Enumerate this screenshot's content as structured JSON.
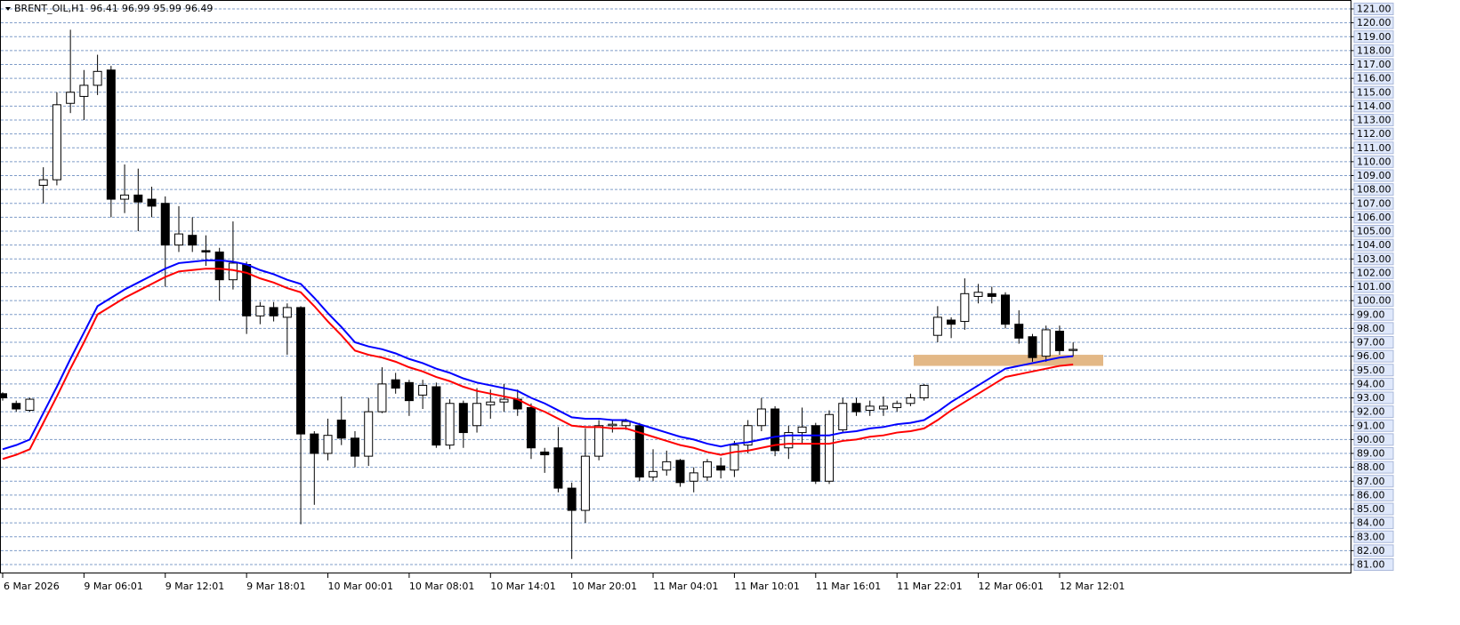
{
  "chart_data": {
    "type": "candlestick",
    "title": "BRENT_OIL,H1",
    "header_values": [
      "96.41",
      "96.99",
      "95.99",
      "96.49"
    ],
    "x": [
      "6 Mar 2026",
      null,
      null,
      null,
      null,
      null,
      "9 Mar 06:01",
      null,
      null,
      null,
      null,
      null,
      "9 Mar 12:01",
      null,
      null,
      null,
      null,
      null,
      "9 Mar 18:01",
      null,
      null,
      null,
      null,
      null,
      "10 Mar 00:01",
      null,
      null,
      null,
      null,
      null,
      "10 Mar 08:01",
      null,
      null,
      null,
      null,
      null,
      "10 Mar 14:01",
      null,
      null,
      null,
      null,
      null,
      "10 Mar 20:01",
      null,
      null,
      null,
      null,
      null,
      "11 Mar 04:01",
      null,
      null,
      null,
      null,
      null,
      "11 Mar 10:01",
      null,
      null,
      null,
      null,
      null,
      "11 Mar 16:01",
      null,
      null,
      null,
      null,
      null,
      "11 Mar 22:01",
      null,
      null,
      null,
      null,
      null,
      "12 Mar 06:01",
      null,
      null,
      null,
      null,
      null,
      "12 Mar 12:01",
      null
    ],
    "open": [
      93.3,
      92.6,
      92.1,
      108.3,
      108.7,
      114.2,
      114.7,
      115.5,
      116.6,
      107.3,
      107.6,
      107.3,
      107.0,
      104.0,
      104.7,
      103.6,
      103.5,
      101.5,
      102.6,
      98.9,
      99.5,
      98.8,
      99.5,
      90.4,
      89.0,
      91.4,
      90.1,
      88.8,
      92.0,
      94.3,
      94.1,
      93.2,
      93.8,
      89.6,
      92.6,
      91.0,
      92.5,
      92.7,
      92.9,
      92.3,
      89.1,
      89.4,
      86.5,
      84.9,
      88.8,
      91.0,
      91.0,
      91.0,
      87.3,
      87.8,
      88.5,
      87.0,
      87.3,
      88.1,
      87.8,
      89.6,
      91.0,
      92.2,
      89.4,
      90.5,
      91.0,
      87.0,
      90.7,
      92.6,
      92.1,
      92.2,
      92.3,
      92.6,
      93.0,
      97.5,
      98.6,
      98.5,
      100.3,
      100.5,
      100.4,
      98.3,
      97.4,
      96.0,
      97.8,
      96.41
    ],
    "high": [
      93.4,
      92.8,
      93.0,
      109.6,
      115.0,
      119.5,
      116.6,
      117.7,
      116.9,
      109.8,
      109.5,
      108.2,
      107.5,
      106.8,
      106.0,
      104.7,
      103.8,
      105.7,
      102.8,
      99.9,
      99.9,
      99.8,
      99.6,
      90.6,
      91.5,
      93.1,
      90.6,
      93.0,
      95.2,
      94.8,
      94.3,
      94.3,
      94.1,
      92.9,
      92.8,
      93.7,
      93.6,
      94.0,
      93.6,
      92.6,
      89.4,
      90.9,
      86.9,
      90.8,
      91.4,
      91.4,
      91.5,
      91.2,
      89.3,
      89.2,
      88.6,
      88.0,
      88.6,
      88.7,
      89.9,
      91.4,
      93.0,
      92.4,
      91.0,
      92.3,
      91.2,
      92.1,
      93.0,
      93.0,
      92.8,
      93.1,
      92.8,
      93.3,
      94.0,
      99.6,
      98.8,
      101.6,
      101.2,
      101.0,
      100.6,
      99.3,
      97.6,
      98.2,
      98.2,
      96.99
    ],
    "low": [
      92.8,
      92.0,
      92.0,
      107.0,
      108.3,
      113.5,
      113.0,
      114.8,
      106.0,
      106.3,
      105.0,
      106.0,
      101.0,
      103.5,
      103.5,
      102.5,
      100.0,
      100.8,
      97.6,
      98.3,
      98.5,
      96.1,
      83.9,
      85.3,
      88.5,
      89.6,
      88.0,
      88.1,
      91.9,
      93.3,
      91.7,
      92.2,
      89.4,
      89.3,
      89.4,
      90.5,
      91.5,
      92.0,
      91.7,
      88.6,
      87.6,
      86.2,
      81.4,
      84.0,
      88.5,
      90.5,
      90.7,
      87.0,
      87.0,
      87.4,
      86.6,
      86.2,
      87.0,
      87.2,
      87.3,
      89.0,
      90.6,
      88.8,
      88.6,
      89.7,
      86.8,
      86.8,
      90.5,
      91.7,
      91.7,
      91.7,
      92.0,
      92.4,
      92.8,
      97.0,
      97.3,
      97.9,
      99.8,
      99.8,
      98.0,
      96.9,
      95.6,
      95.6,
      96.1,
      95.99
    ],
    "close": [
      93.0,
      92.2,
      92.9,
      108.7,
      114.1,
      115.0,
      115.5,
      116.5,
      107.3,
      107.6,
      107.1,
      106.8,
      104.0,
      104.8,
      104.0,
      103.5,
      101.5,
      102.7,
      98.9,
      99.6,
      98.9,
      99.5,
      90.4,
      89.0,
      90.3,
      90.1,
      88.8,
      92.0,
      94.0,
      93.7,
      92.8,
      93.9,
      89.6,
      92.6,
      90.5,
      92.6,
      92.7,
      92.9,
      92.2,
      89.4,
      88.9,
      86.5,
      84.9,
      88.8,
      91.0,
      91.1,
      91.3,
      87.3,
      87.7,
      88.4,
      86.9,
      87.6,
      88.4,
      87.8,
      89.6,
      91.0,
      92.2,
      89.2,
      90.5,
      90.9,
      87.0,
      91.8,
      92.6,
      92.0,
      92.4,
      92.4,
      92.6,
      93.0,
      93.9,
      98.8,
      98.3,
      100.5,
      100.6,
      100.3,
      98.3,
      97.3,
      95.9,
      97.9,
      96.4,
      96.49
    ],
    "overlays": [
      {
        "color": "#0000ff",
        "values": [
          89.3,
          89.6,
          90.0,
          91.9,
          93.8,
          95.8,
          97.7,
          99.6,
          100.2,
          100.8,
          101.3,
          101.8,
          102.3,
          102.7,
          102.8,
          102.9,
          102.9,
          102.8,
          102.6,
          102.2,
          101.9,
          101.5,
          101.2,
          100.2,
          99.1,
          98.1,
          97.0,
          96.7,
          96.5,
          96.2,
          95.8,
          95.5,
          95.1,
          94.8,
          94.4,
          94.1,
          93.9,
          93.7,
          93.5,
          93.0,
          92.6,
          92.1,
          91.6,
          91.5,
          91.5,
          91.4,
          91.4,
          91.1,
          90.8,
          90.5,
          90.2,
          90.0,
          89.7,
          89.5,
          89.7,
          89.8,
          90.0,
          90.2,
          90.3,
          90.3,
          90.3,
          90.3,
          90.5,
          90.6,
          90.8,
          90.9,
          91.1,
          91.2,
          91.4,
          92.0,
          92.7,
          93.3,
          93.9,
          94.5,
          95.1,
          95.3,
          95.5,
          95.7,
          95.9,
          96.0
        ]
      },
      {
        "color": "#ff0000",
        "values": [
          88.6,
          88.9,
          89.3,
          91.2,
          93.1,
          95.1,
          97.0,
          99.0,
          99.6,
          100.2,
          100.7,
          101.2,
          101.7,
          102.1,
          102.2,
          102.3,
          102.3,
          102.2,
          102.0,
          101.6,
          101.3,
          100.9,
          100.6,
          99.6,
          98.5,
          97.5,
          96.4,
          96.1,
          95.9,
          95.6,
          95.2,
          94.9,
          94.5,
          94.2,
          93.8,
          93.5,
          93.3,
          93.1,
          92.9,
          92.4,
          92.0,
          91.5,
          91.0,
          90.9,
          90.9,
          90.8,
          90.8,
          90.5,
          90.2,
          89.9,
          89.6,
          89.4,
          89.1,
          88.9,
          89.1,
          89.2,
          89.4,
          89.6,
          89.7,
          89.7,
          89.7,
          89.7,
          89.9,
          90.0,
          90.2,
          90.3,
          90.5,
          90.6,
          90.8,
          91.4,
          92.1,
          92.7,
          93.3,
          93.9,
          94.5,
          94.7,
          94.9,
          95.1,
          95.3,
          95.4
        ]
      }
    ],
    "zone": [
      95.3,
      96.1
    ],
    "zone_color": "#e3b886",
    "up_color": "#ffffff",
    "down_color": "#000000",
    "grid": true,
    "ylim": [
      81,
      121
    ],
    "yticks": [
      {
        "value": 81,
        "label": "81.00"
      },
      {
        "value": 82,
        "label": "82.00"
      },
      {
        "value": 83,
        "label": "83.00"
      },
      {
        "value": 84,
        "label": "84.00"
      },
      {
        "value": 85,
        "label": "85.00"
      },
      {
        "value": 86,
        "label": "86.00"
      },
      {
        "value": 87,
        "label": "87.00"
      },
      {
        "value": 88,
        "label": "88.00"
      },
      {
        "value": 89,
        "label": "89.00"
      },
      {
        "value": 90,
        "label": "90.00"
      },
      {
        "value": 91,
        "label": "91.00"
      },
      {
        "value": 92,
        "label": "92.00"
      },
      {
        "value": 93,
        "label": "93.00"
      },
      {
        "value": 94,
        "label": "94.00"
      },
      {
        "value": 95,
        "label": "95.00"
      },
      {
        "value": 96,
        "label": "96.00"
      },
      {
        "value": 97,
        "label": "97.00"
      },
      {
        "value": 98,
        "label": "98.00"
      },
      {
        "value": 99,
        "label": "99.00"
      },
      {
        "value": 100,
        "label": "100.00"
      },
      {
        "value": 101,
        "label": "101.00"
      },
      {
        "value": 102,
        "label": "102.00"
      },
      {
        "value": 103,
        "label": "103.00"
      },
      {
        "value": 104,
        "label": "104.00"
      },
      {
        "value": 105,
        "label": "105.00"
      },
      {
        "value": 106,
        "label": "106.00"
      },
      {
        "value": 107,
        "label": "107.00"
      },
      {
        "value": 108,
        "label": "108.00"
      },
      {
        "value": 109,
        "label": "109.00"
      },
      {
        "value": 110,
        "label": "110.00"
      },
      {
        "value": 111,
        "label": "111.00"
      },
      {
        "value": 112,
        "label": "112.00"
      },
      {
        "value": 113,
        "label": "113.00"
      },
      {
        "value": 114,
        "label": "114.00"
      },
      {
        "value": 115,
        "label": "115.00"
      },
      {
        "value": 116,
        "label": "116.00"
      },
      {
        "value": 117,
        "label": "117.00"
      },
      {
        "value": 118,
        "label": "118.00"
      },
      {
        "value": 119,
        "label": "119.00"
      },
      {
        "value": 120,
        "label": "120.00"
      },
      {
        "value": 121,
        "label": "121.00"
      }
    ]
  }
}
